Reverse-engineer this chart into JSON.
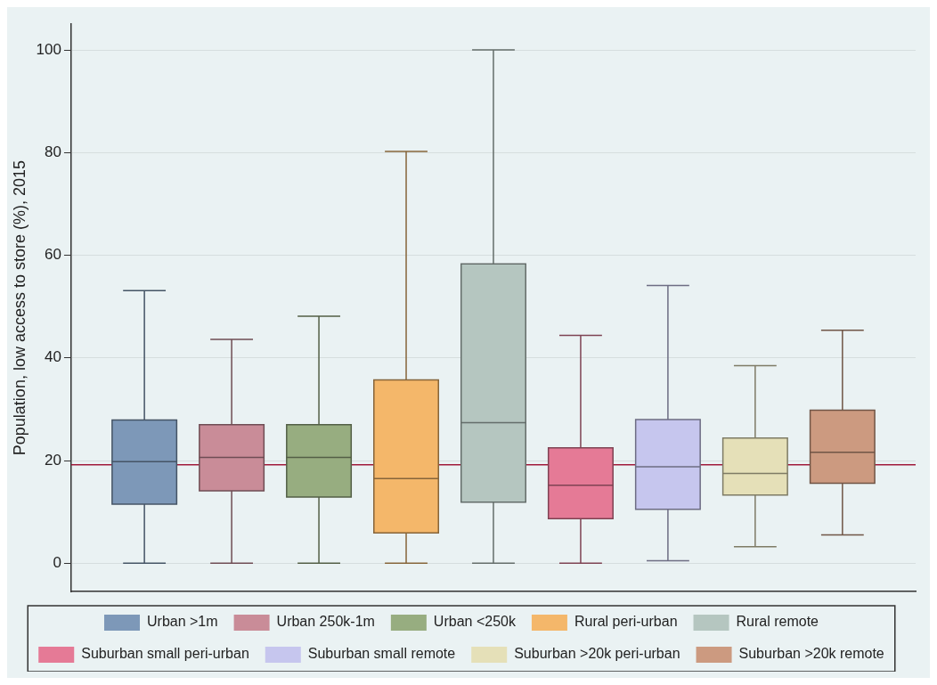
{
  "chart_data": {
    "type": "box",
    "ylabel": "Population, low access to store (%), 2015",
    "categories": [
      null
    ],
    "series": [
      {
        "name": "Urban >1m",
        "color": "#7d98b8",
        "boxes": [
          {
            "low": 0,
            "q1": 11.5,
            "median": 19.8,
            "q3": 27.9,
            "high": 53.1
          }
        ]
      },
      {
        "name": "Urban 250k-1m",
        "color": "#c98c98",
        "boxes": [
          {
            "low": 0,
            "q1": 14.1,
            "median": 20.6,
            "q3": 27,
            "high": 43.6
          }
        ]
      },
      {
        "name": "Urban <250k",
        "color": "#97ad80",
        "boxes": [
          {
            "low": 0,
            "q1": 12.9,
            "median": 20.6,
            "q3": 27,
            "high": 48.1
          }
        ]
      },
      {
        "name": "Rural peri-urban",
        "color": "#f4b76a",
        "boxes": [
          {
            "low": 0,
            "q1": 5.9,
            "median": 16.5,
            "q3": 35.7,
            "high": 80.2
          }
        ]
      },
      {
        "name": "Rural remote",
        "color": "#b5c6c0",
        "boxes": [
          {
            "low": 0,
            "q1": 11.9,
            "median": 27.4,
            "q3": 58.3,
            "high": 100
          }
        ]
      },
      {
        "name": "Suburban small peri-urban",
        "color": "#e57a96",
        "boxes": [
          {
            "low": 0,
            "q1": 8.7,
            "median": 15.2,
            "q3": 22.5,
            "high": 44.4
          }
        ]
      },
      {
        "name": "Suburban small remote",
        "color": "#c6c6ee",
        "boxes": [
          {
            "low": 0.5,
            "q1": 10.5,
            "median": 18.8,
            "q3": 28,
            "high": 54.1
          }
        ]
      },
      {
        "name": "Suburban >20k peri-urban",
        "color": "#e5e0b8",
        "boxes": [
          {
            "low": 3.2,
            "q1": 13.3,
            "median": 17.5,
            "q3": 24.4,
            "high": 38.5
          }
        ]
      },
      {
        "name": "Suburban >20k remote",
        "color": "#cc9a80",
        "boxes": [
          {
            "low": 5.5,
            "q1": 15.6,
            "median": 21.6,
            "q3": 29.8,
            "high": 45.4
          }
        ]
      }
    ],
    "ylim": [
      -5.5,
      105
    ],
    "yticks": [
      0,
      20,
      40,
      60,
      80,
      100
    ],
    "grid": "y",
    "legend": "bottom",
    "tick_labels": "y",
    "ref_lines": [
      {
        "axis": "y",
        "value": 19.2,
        "color": "#a01a3a"
      }
    ]
  }
}
